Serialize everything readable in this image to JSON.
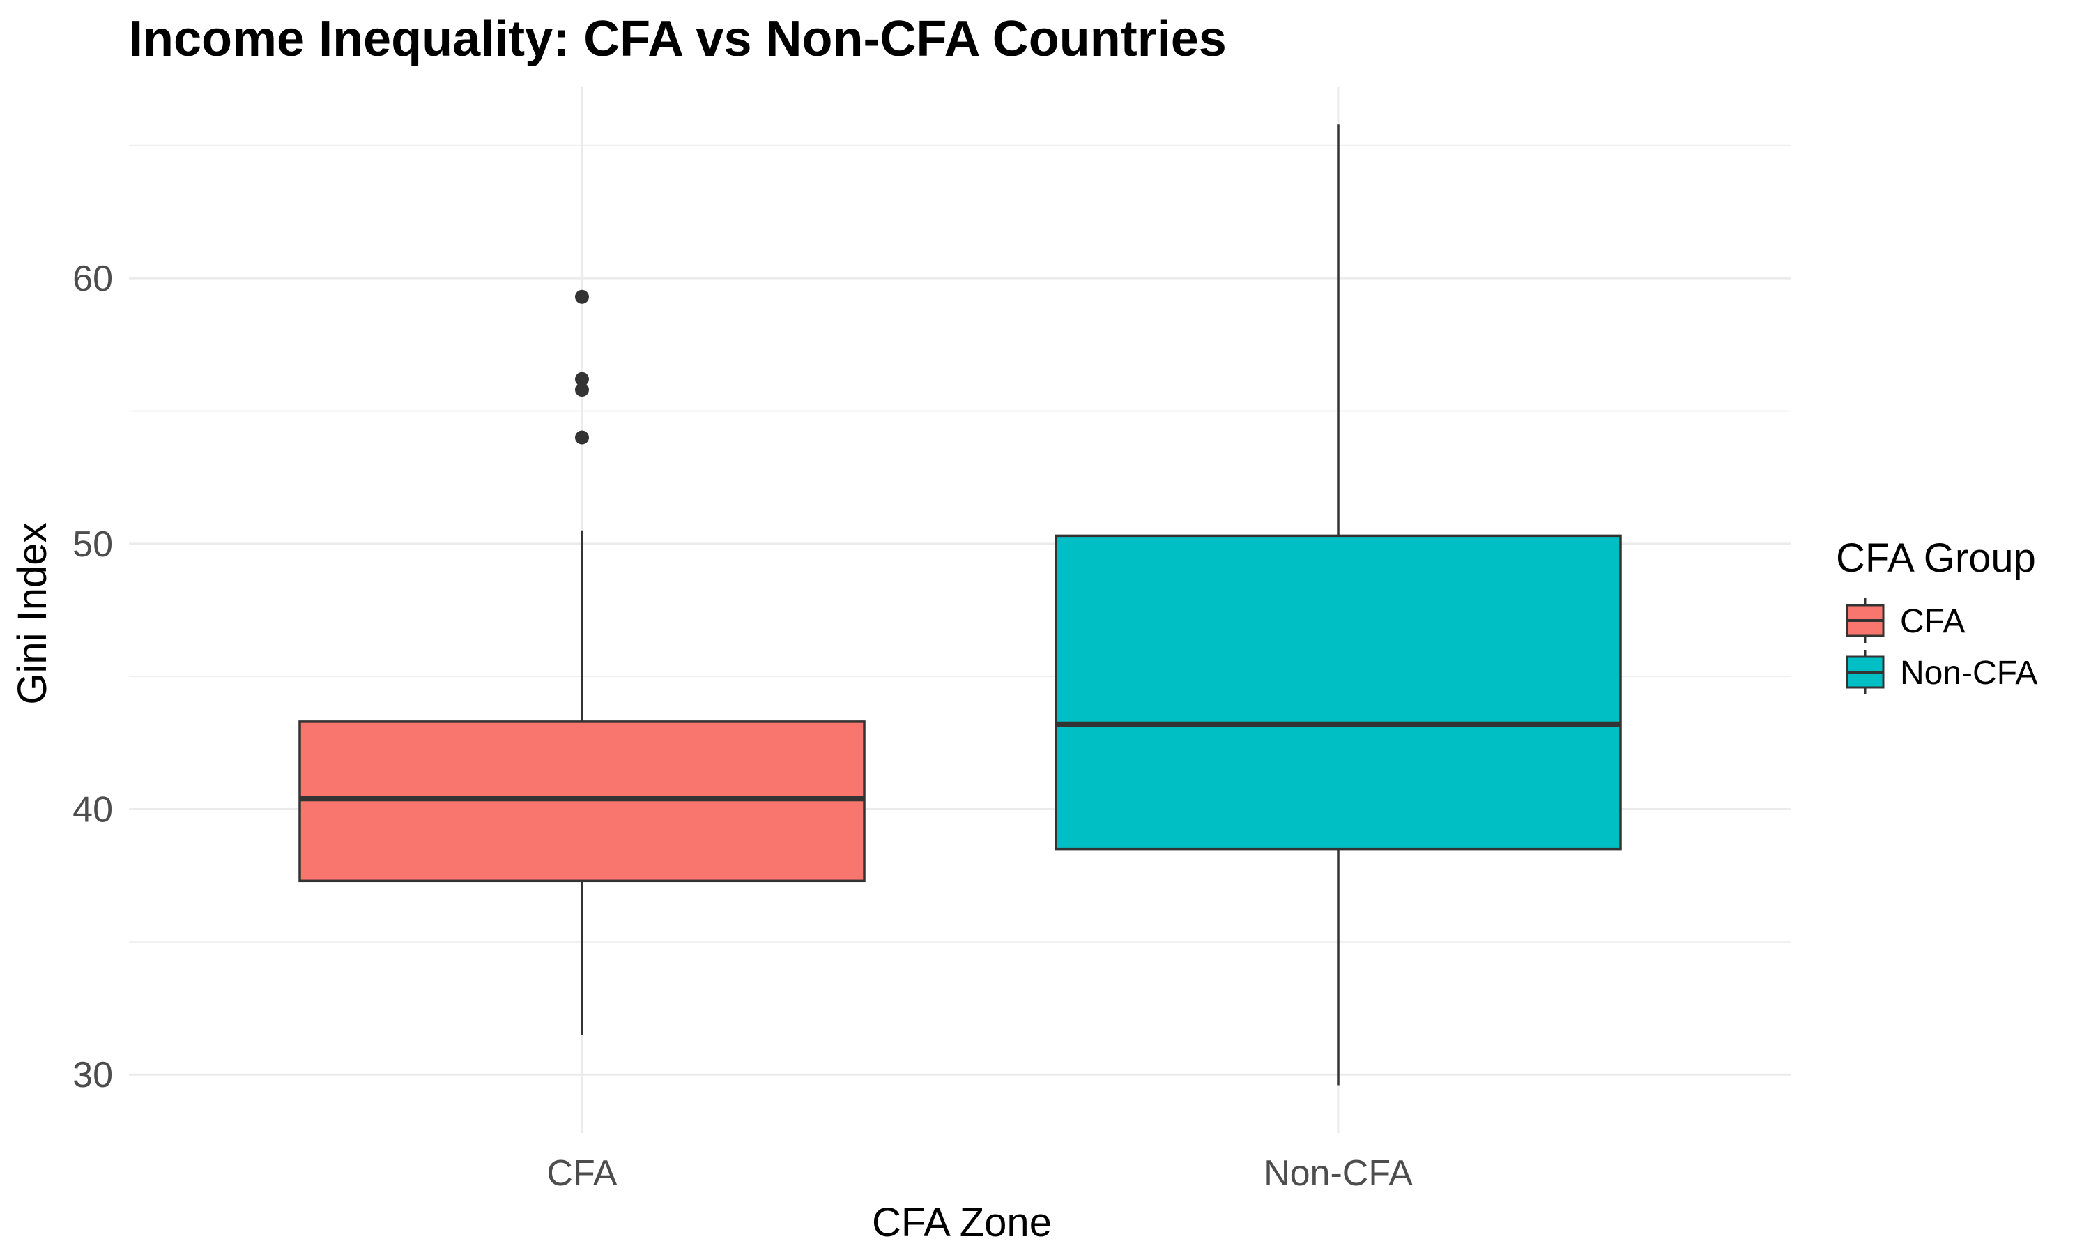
{
  "chart_data": {
    "type": "boxplot",
    "title": "Income Inequality: CFA vs Non-CFA Countries",
    "xlabel": "CFA Zone",
    "ylabel": "Gini Index",
    "ylim": [
      27.8,
      67.2
    ],
    "yticks": [
      30,
      40,
      50,
      60
    ],
    "grid": true,
    "legend": {
      "title": "CFA Group",
      "position": "right",
      "entries": [
        "CFA",
        "Non-CFA"
      ]
    },
    "categories": [
      "CFA",
      "Non-CFA"
    ],
    "series": [
      {
        "name": "CFA",
        "color": "#F8766D",
        "whisker_low": 31.5,
        "q1": 37.3,
        "median": 40.4,
        "q3": 43.3,
        "whisker_high": 50.5,
        "outliers": [
          54.0,
          55.8,
          56.2,
          59.3
        ]
      },
      {
        "name": "Non-CFA",
        "color": "#00BFC4",
        "whisker_low": 29.6,
        "q1": 38.5,
        "median": 43.2,
        "q3": 50.3,
        "whisker_high": 65.8,
        "outliers": []
      }
    ]
  }
}
